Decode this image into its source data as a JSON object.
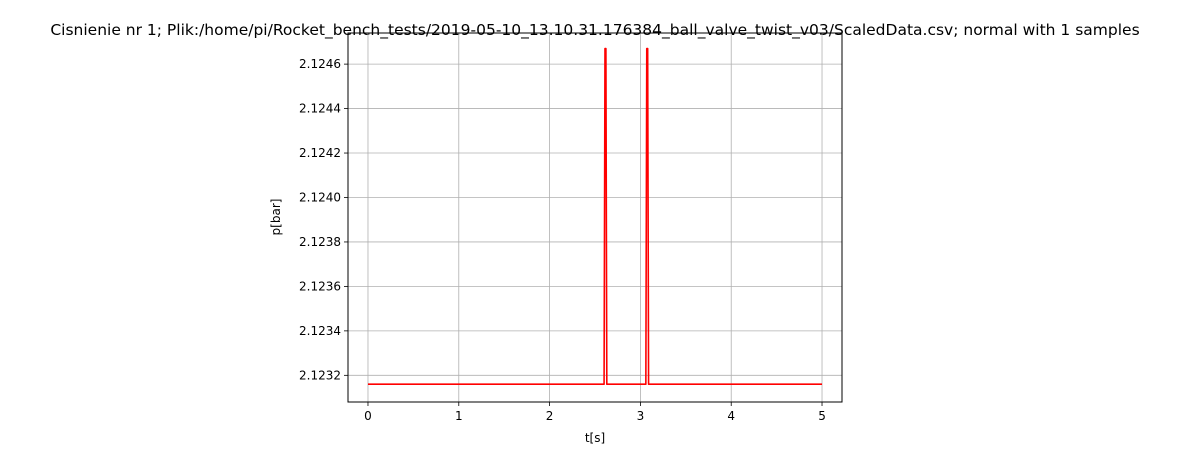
{
  "chart_data": {
    "type": "line",
    "title": "Cisnienie nr 1; Plik:/home/pi/Rocket_bench_tests/2019-05-10_13.10.31.176384_ball_valve_twist_v03/ScaledData.csv; normal with 1 samples",
    "xlabel": "t[s]",
    "ylabel": "p[bar]",
    "xlim": [
      -0.22,
      5.22
    ],
    "ylim": [
      2.12308,
      2.12474
    ],
    "x_ticks": [
      0,
      1,
      2,
      3,
      4,
      5
    ],
    "x_tick_labels": [
      "0",
      "1",
      "2",
      "3",
      "4",
      "5"
    ],
    "y_ticks": [
      2.1232,
      2.1234,
      2.1236,
      2.1238,
      2.124,
      2.1242,
      2.1244,
      2.1246
    ],
    "y_tick_labels": [
      "2.1232",
      "2.1234",
      "2.1236",
      "2.1238",
      "2.1240",
      "2.1242",
      "2.1244",
      "2.1246"
    ],
    "grid": true,
    "series": [
      {
        "color": "#ff0000",
        "x": [
          0,
          2.6,
          2.61,
          2.62,
          2.63,
          3.06,
          3.07,
          3.08,
          3.09,
          5
        ],
        "y": [
          2.12316,
          2.12316,
          2.12467,
          2.12467,
          2.12316,
          2.12316,
          2.12467,
          2.12467,
          2.12316,
          2.12316
        ]
      }
    ]
  }
}
